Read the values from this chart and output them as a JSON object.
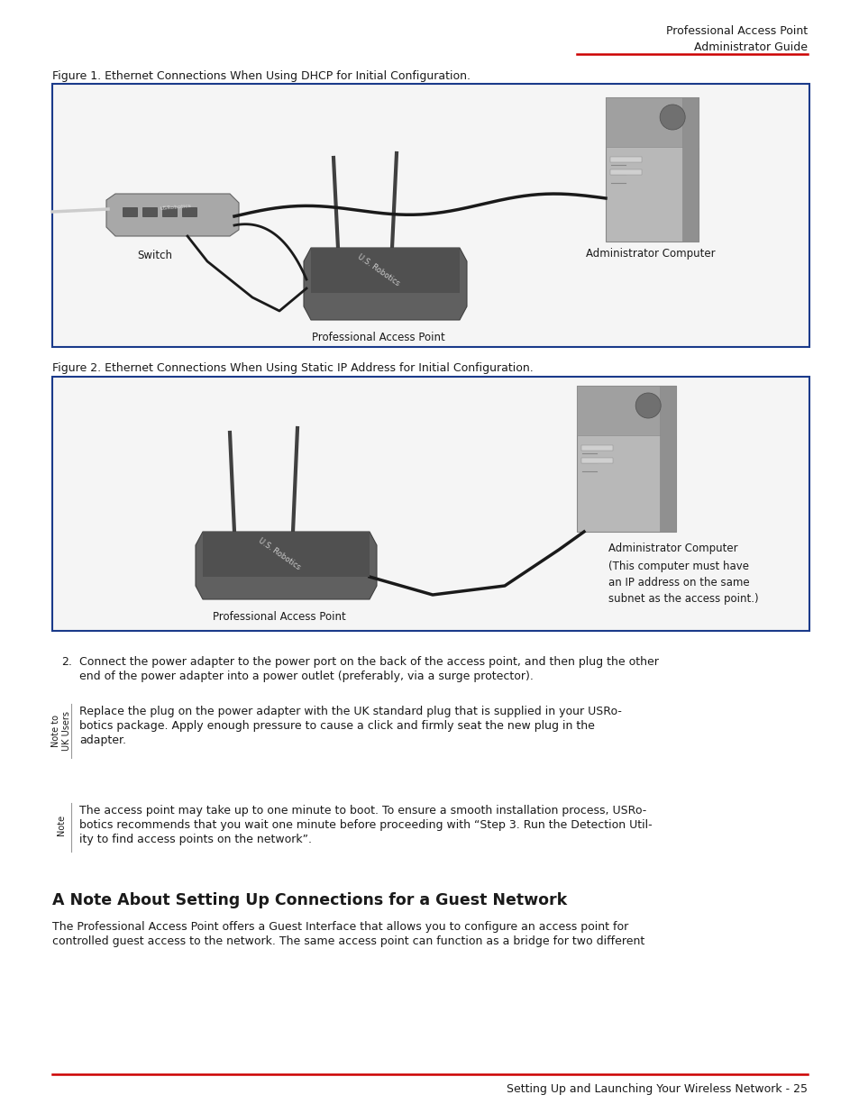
{
  "header_title": "Professional Access Point",
  "header_subtitle": "Administrator Guide",
  "header_line_color": "#cc0000",
  "fig1_caption": "Figure 1. Ethernet Connections When Using DHCP for Initial Configuration.",
  "fig2_caption": "Figure 2. Ethernet Connections When Using Static IP Address for Initial Configuration.",
  "fig_border_color": "#1a3a8a",
  "step2_text_line1": "Connect the power adapter to the power port on the back of the access point, and then plug the other",
  "step2_text_line2": "end of the power adapter into a power outlet (preferably, via a surge protector).",
  "uk_note_label_line1": "Note to",
  "uk_note_label_line2": "UK Users",
  "uk_note_text_line1": "Replace the plug on the power adapter with the UK standard plug that is supplied in your USRo-",
  "uk_note_text_line2": "botics package. Apply enough pressure to cause a click and firmly seat the new plug in the",
  "uk_note_text_line3": "adapter.",
  "note_label": "Note",
  "note_text_line1": "The access point may take up to one minute to boot. To ensure a smooth installation process, USRo-",
  "note_text_line2": "botics recommends that you wait one minute before proceeding with “Step 3. Run the Detection Util-",
  "note_text_line3": "ity to find access points on the network”.",
  "section_title": "A Note About Setting Up Connections for a Guest Network",
  "section_text_line1": "The Professional Access Point offers a Guest Interface that allows you to configure an access point for",
  "section_text_line2": "controlled guest access to the network. The same access point can function as a bridge for two different",
  "footer_line_color": "#cc0000",
  "footer_text": "Setting Up and Launching Your Wireless Network - 25",
  "bg_color": "#ffffff",
  "text_color": "#1a1a1a",
  "body_font_size": 9.0,
  "label_font_size": 8.5,
  "sidebar_font_size": 7.0
}
